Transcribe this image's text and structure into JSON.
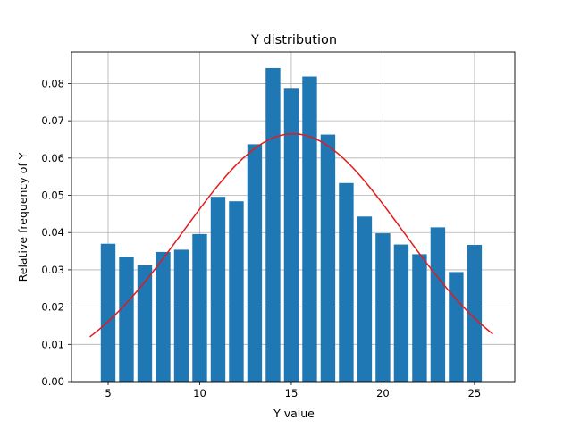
{
  "chart_data": {
    "type": "bar",
    "title": "Y distribution",
    "xlabel": "Y value",
    "ylabel": "Relative frequency of Y",
    "xlim": [
      3,
      27.2
    ],
    "ylim": [
      0,
      0.0885
    ],
    "grid": true,
    "x_ticks": [
      5,
      10,
      15,
      20,
      25
    ],
    "y_ticks": [
      0.0,
      0.01,
      0.02,
      0.03,
      0.04,
      0.05,
      0.06,
      0.07,
      0.08
    ],
    "bar_color": "#1f77b4",
    "curve_color": "#e41a1c",
    "bars": {
      "x": [
        5,
        6,
        7,
        8,
        9,
        10,
        11,
        12,
        13,
        14,
        15,
        16,
        17,
        18,
        19,
        20,
        21,
        22,
        23,
        24,
        25
      ],
      "values": [
        0.037,
        0.0335,
        0.0312,
        0.0348,
        0.0354,
        0.0396,
        0.0496,
        0.0484,
        0.0637,
        0.0842,
        0.0786,
        0.0819,
        0.0663,
        0.0533,
        0.0443,
        0.0398,
        0.0368,
        0.0342,
        0.0414,
        0.0294,
        0.0367
      ]
    },
    "curve": {
      "type": "line",
      "mean": 15.1,
      "std": 6.0,
      "peak": 0.0665,
      "x_range": [
        4,
        26
      ]
    }
  }
}
